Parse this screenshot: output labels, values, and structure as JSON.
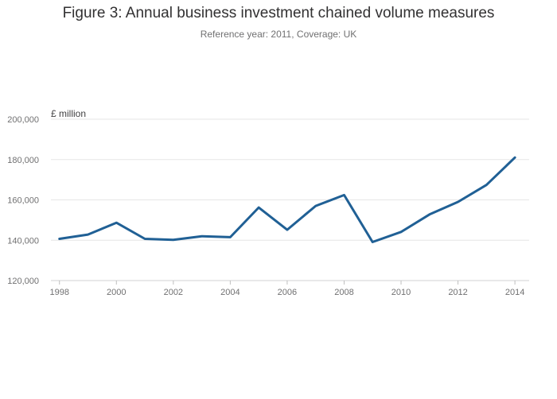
{
  "chart_data": {
    "type": "line",
    "title": "Figure 3: Annual business investment chained volume measures",
    "subtitle": "Reference year: 2011, Coverage: UK",
    "ylabel": "£ million",
    "xlabel": "",
    "ylim": [
      120000,
      200000
    ],
    "yticks": [
      120000,
      140000,
      160000,
      180000,
      200000
    ],
    "ytick_labels": [
      "120,000",
      "140,000",
      "160,000",
      "180,000",
      "200,000"
    ],
    "xlim": [
      1997.7,
      2014.5
    ],
    "xticks": [
      1998,
      2000,
      2002,
      2004,
      2006,
      2008,
      2010,
      2012,
      2014
    ],
    "xtick_labels": [
      "1998",
      "2000",
      "2002",
      "2004",
      "2006",
      "2008",
      "2010",
      "2012",
      "2014"
    ],
    "grid": true,
    "series": [
      {
        "name": "Business investment",
        "color": "#206095",
        "x": [
          1998,
          1999,
          2000,
          2001,
          2002,
          2003,
          2004,
          2005,
          2006,
          2007,
          2008,
          2009,
          2010,
          2011,
          2012,
          2013,
          2014
        ],
        "values": [
          140700,
          142800,
          148700,
          140700,
          140200,
          142000,
          141500,
          156200,
          145200,
          157000,
          162400,
          139100,
          144100,
          152800,
          159000,
          167400,
          181000
        ]
      }
    ]
  }
}
